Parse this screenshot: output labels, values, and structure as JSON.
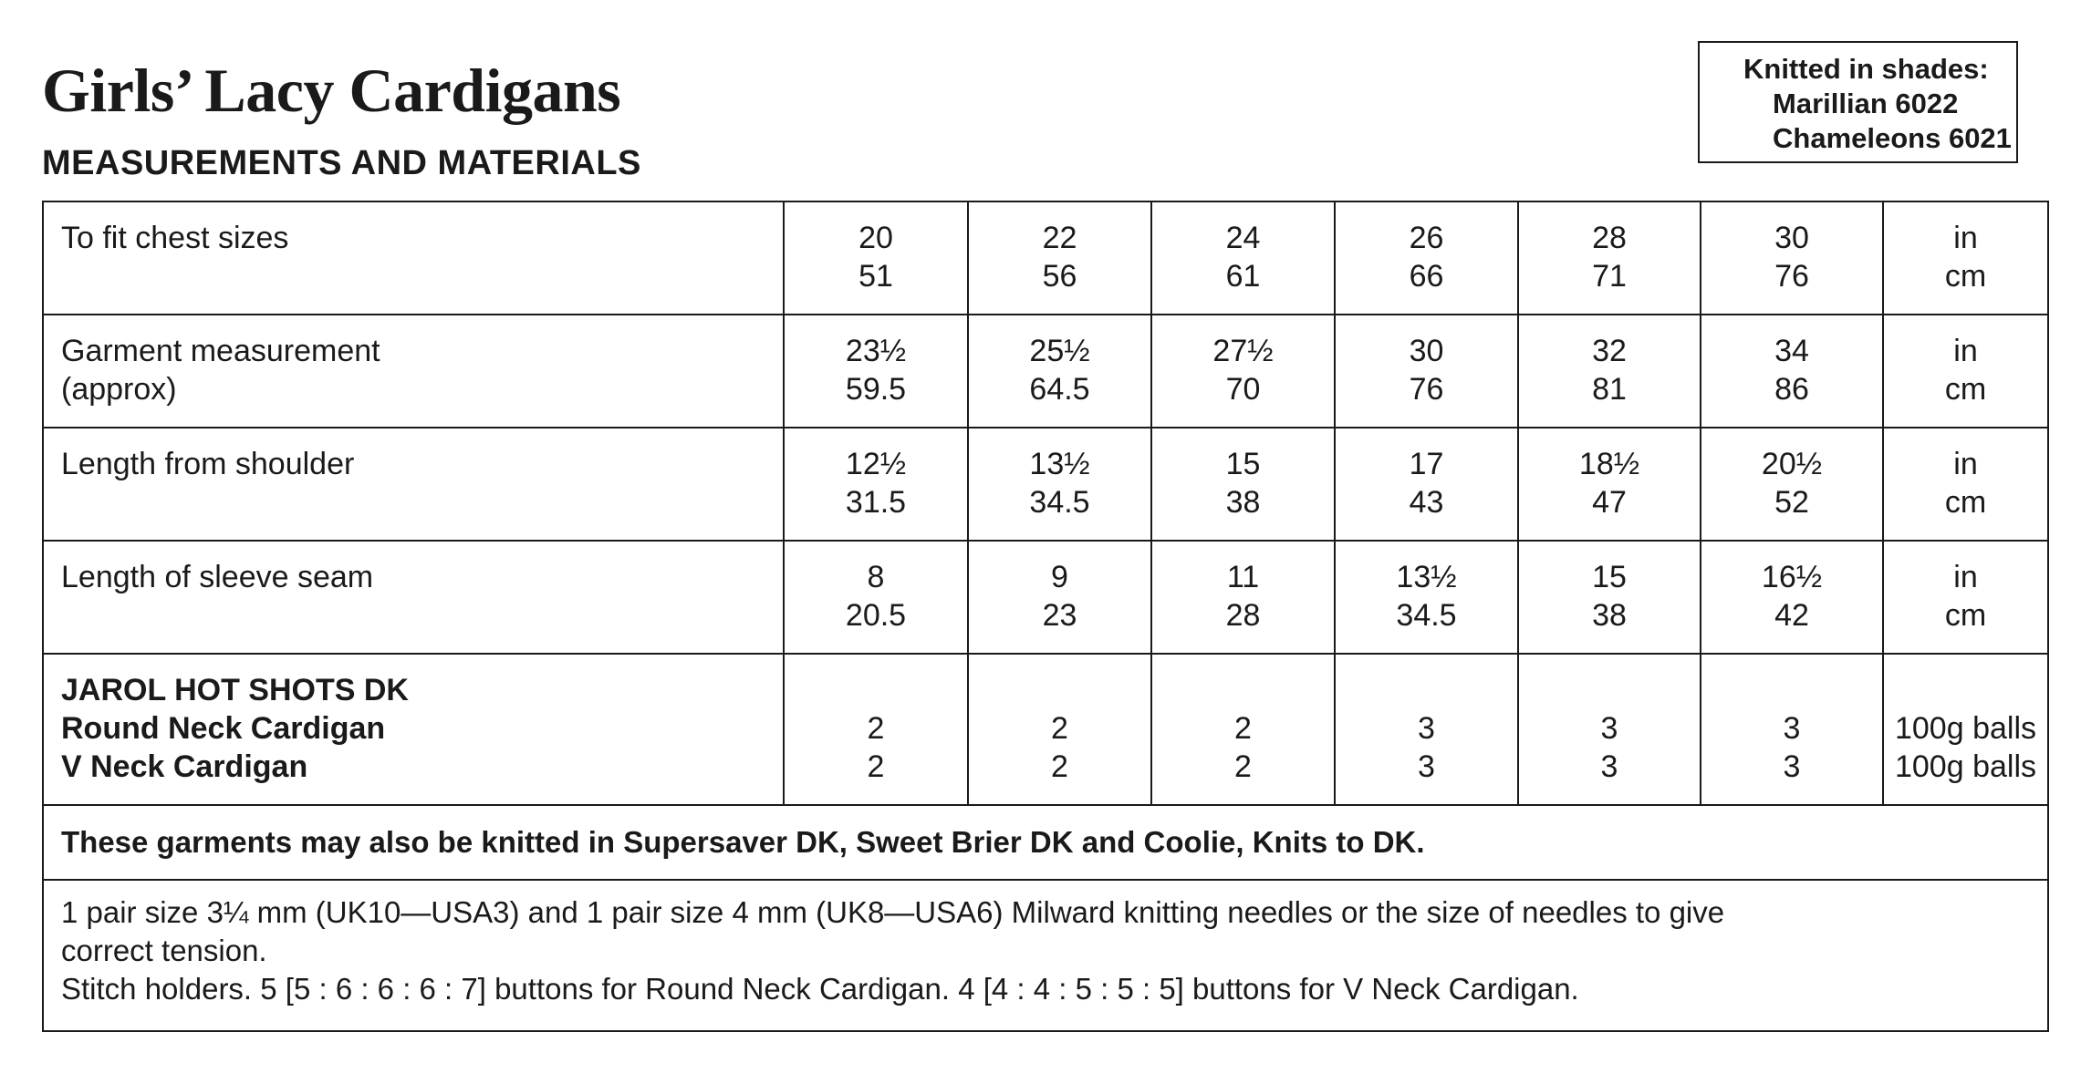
{
  "title": "Girls’ Lacy Cardigans",
  "subtitle": "MEASUREMENTS AND MATERIALS",
  "shades": {
    "heading": "Knitted in shades:",
    "line1": "Marillian 6022",
    "line2": "Chameleons 6021"
  },
  "rows": [
    {
      "label": [
        "To fit chest sizes"
      ],
      "values": [
        [
          "20",
          "51"
        ],
        [
          "22",
          "56"
        ],
        [
          "24",
          "61"
        ],
        [
          "26",
          "66"
        ],
        [
          "28",
          "71"
        ],
        [
          "30",
          "76"
        ]
      ],
      "units": [
        "in",
        "cm"
      ]
    },
    {
      "label": [
        "Garment measurement",
        "(approx)"
      ],
      "values": [
        [
          "23½",
          "59.5"
        ],
        [
          "25½",
          "64.5"
        ],
        [
          "27½",
          "70"
        ],
        [
          "30",
          "76"
        ],
        [
          "32",
          "81"
        ],
        [
          "34",
          "86"
        ]
      ],
      "units": [
        "in",
        "cm"
      ]
    },
    {
      "label": [
        "Length from shoulder"
      ],
      "values": [
        [
          "12½",
          "31.5"
        ],
        [
          "13½",
          "34.5"
        ],
        [
          "15",
          "38"
        ],
        [
          "17",
          "43"
        ],
        [
          "18½",
          "47"
        ],
        [
          "20½",
          "52"
        ]
      ],
      "units": [
        "in",
        "cm"
      ]
    },
    {
      "label": [
        "Length of sleeve seam"
      ],
      "values": [
        [
          "8",
          "20.5"
        ],
        [
          "9",
          "23"
        ],
        [
          "11",
          "28"
        ],
        [
          "13½",
          "34.5"
        ],
        [
          "15",
          "38"
        ],
        [
          "16½",
          "42"
        ]
      ],
      "units": [
        "in",
        "cm"
      ]
    },
    {
      "label": [
        "JAROL HOT SHOTS DK",
        "Round Neck Cardigan",
        "V Neck Cardigan"
      ],
      "values": [
        [
          "2",
          "2"
        ],
        [
          "2",
          "2"
        ],
        [
          "2",
          "2"
        ],
        [
          "3",
          "3"
        ],
        [
          "3",
          "3"
        ],
        [
          "3",
          "3"
        ]
      ],
      "units": [
        "100g balls",
        "100g balls"
      ]
    }
  ],
  "note": "These garments may also be knitted in Supersaver DK, Sweet Brier DK and Coolie, Knits to DK.",
  "needles": {
    "line1": "1 pair size 3¼ mm (UK10—USA3) and 1 pair size 4 mm (UK8—USA6) Milward knitting needles or the size of needles to give",
    "line2": "correct tension.",
    "line3": "Stitch holders. 5 [5 : 6 : 6 : 6 : 7] buttons for Round Neck Cardigan. 4 [4 : 4 : 5 : 5 : 5] buttons for V Neck Cardigan."
  }
}
